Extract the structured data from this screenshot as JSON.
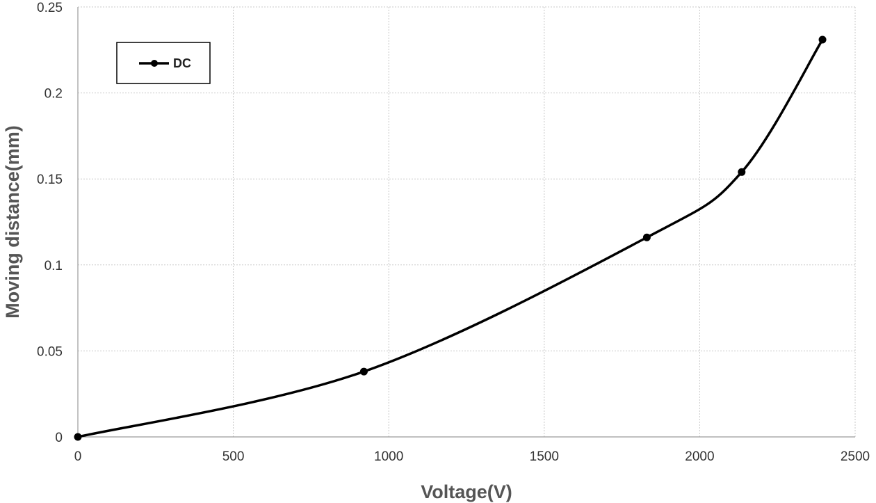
{
  "chart_data": {
    "type": "line",
    "title": "",
    "xlabel": "Voltage(V)",
    "ylabel": "Moving distance(mm)",
    "xlim": [
      0,
      2500
    ],
    "ylim": [
      0,
      0.25
    ],
    "x_ticks": [
      "0",
      "500",
      "1000",
      "1500",
      "2000",
      "2500"
    ],
    "y_ticks": [
      "0",
      "0.05",
      "0.1",
      "0.15",
      "0.2",
      "0.25"
    ],
    "grid": true,
    "legend_position": "top-left",
    "series": [
      {
        "name": "DC",
        "color": "#000000",
        "smooth": true,
        "marker": "circle",
        "points": [
          {
            "x": 0,
            "y": 0
          },
          {
            "x": 920,
            "y": 0.038
          },
          {
            "x": 1830,
            "y": 0.116
          },
          {
            "x": 2135,
            "y": 0.154
          },
          {
            "x": 2395,
            "y": 0.231
          }
        ]
      }
    ]
  }
}
